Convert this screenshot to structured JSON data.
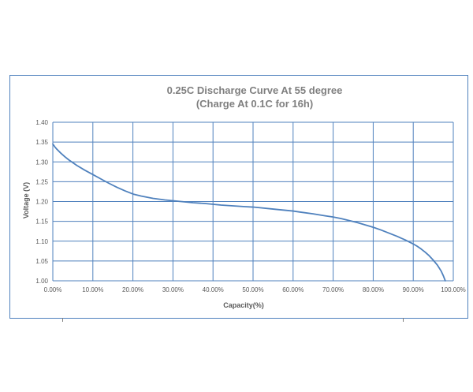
{
  "chart_data": {
    "type": "line",
    "title": [
      "0.25C Discharge Curve At 55 degree",
      "(Charge At 0.1C for 16h)"
    ],
    "xlabel": "Capacity(%)",
    "ylabel": "Voltage (V)",
    "xlim": [
      0,
      100
    ],
    "ylim": [
      1.0,
      1.4
    ],
    "x_tick_labels": [
      "0.00%",
      "10.00%",
      "20.00%",
      "30.00%",
      "40.00%",
      "50.00%",
      "60.00%",
      "70.00%",
      "80.00%",
      "90.00%",
      "100.00%"
    ],
    "y_tick_labels": [
      "1.00",
      "1.05",
      "1.10",
      "1.15",
      "1.20",
      "1.25",
      "1.30",
      "1.35",
      "1.40"
    ],
    "grid": true,
    "line_color": "#4f81bd",
    "grid_color": "#4f81bd",
    "series": [
      {
        "x": [
          0,
          0.5,
          1,
          2,
          3,
          4,
          5,
          6,
          8,
          10,
          12,
          14,
          16,
          18,
          20,
          22,
          25,
          28,
          30,
          32,
          35,
          38,
          40,
          42,
          45,
          48,
          50,
          52,
          55,
          58,
          60,
          62,
          65,
          68,
          70,
          72,
          74,
          76,
          78,
          80,
          82,
          84,
          86,
          88,
          90,
          91,
          92,
          93,
          94,
          95,
          96,
          97,
          97.5,
          98
        ],
        "y": [
          1.345,
          1.338,
          1.332,
          1.322,
          1.313,
          1.305,
          1.298,
          1.291,
          1.279,
          1.268,
          1.257,
          1.246,
          1.236,
          1.227,
          1.219,
          1.214,
          1.208,
          1.204,
          1.202,
          1.2,
          1.197,
          1.195,
          1.193,
          1.191,
          1.189,
          1.187,
          1.186,
          1.184,
          1.181,
          1.178,
          1.176,
          1.173,
          1.169,
          1.164,
          1.161,
          1.157,
          1.152,
          1.147,
          1.141,
          1.135,
          1.128,
          1.12,
          1.112,
          1.103,
          1.093,
          1.087,
          1.08,
          1.072,
          1.063,
          1.052,
          1.04,
          1.024,
          1.013,
          1.0
        ]
      }
    ]
  }
}
